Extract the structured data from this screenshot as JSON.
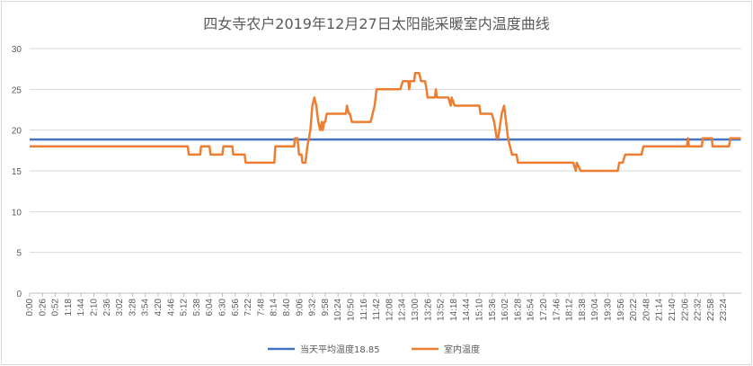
{
  "chart_data": {
    "type": "line",
    "title": "四女寺农户2019年12月27日太阳能采暖室内温度曲线",
    "ylim": [
      0,
      30
    ],
    "yticks": [
      "0",
      "5",
      "10",
      "15",
      "20",
      "25",
      "30"
    ],
    "xlabel": "",
    "ylabel": "",
    "grid": true,
    "legend_position": "bottom",
    "x_tick_labels": [
      "0:00",
      "0:26",
      "0:52",
      "1:18",
      "1:44",
      "2:10",
      "2:36",
      "3:02",
      "3:28",
      "3:54",
      "4:20",
      "4:46",
      "5:12",
      "5:38",
      "6:04",
      "6:30",
      "6:56",
      "7:22",
      "7:48",
      "8:14",
      "8:40",
      "9:06",
      "9:32",
      "9:58",
      "10:24",
      "10:50",
      "11:16",
      "11:42",
      "12:08",
      "12:34",
      "13:00",
      "13:26",
      "13:52",
      "14:18",
      "14:44",
      "15:10",
      "15:36",
      "16:02",
      "16:28",
      "16:54",
      "17:20",
      "17:46",
      "18:12",
      "18:38",
      "19:04",
      "19:30",
      "19:56",
      "20:22",
      "20:48",
      "21:14",
      "21:40",
      "22:06",
      "22:32",
      "22:58",
      "23:24"
    ],
    "series": [
      {
        "name": "当天平均温度18.85",
        "color": "#4472c4",
        "x": [
          "0:00",
          "23:59"
        ],
        "values": [
          18.85,
          18.85
        ]
      },
      {
        "name": "室内温度",
        "color": "#ed7d31",
        "x": [
          "0:00",
          "5:20",
          "5:22",
          "5:45",
          "5:47",
          "6:04",
          "6:06",
          "6:30",
          "6:32",
          "6:50",
          "6:52",
          "7:15",
          "7:17",
          "8:15",
          "8:17",
          "8:55",
          "8:57",
          "9:02",
          "9:05",
          "9:10",
          "9:12",
          "9:18",
          "9:22",
          "9:28",
          "9:32",
          "9:36",
          "9:40",
          "9:44",
          "9:48",
          "9:51",
          "9:53",
          "9:56",
          "9:58",
          "10:01",
          "10:03",
          "10:06",
          "10:10",
          "10:40",
          "10:42",
          "10:46",
          "10:48",
          "10:52",
          "11:30",
          "11:34",
          "11:38",
          "11:42",
          "11:44",
          "12:10",
          "12:30",
          "12:35",
          "12:46",
          "12:48",
          "12:50",
          "12:52",
          "12:58",
          "13:00",
          "13:08",
          "13:12",
          "13:20",
          "13:23",
          "13:25",
          "13:26",
          "13:30",
          "13:40",
          "13:42",
          "13:44",
          "13:55",
          "14:05",
          "14:07",
          "14:12",
          "14:14",
          "14:20",
          "14:23",
          "14:25",
          "15:10",
          "15:12",
          "15:35",
          "15:40",
          "15:45",
          "15:48",
          "15:55",
          "16:00",
          "16:04",
          "16:08",
          "16:12",
          "16:16",
          "16:20",
          "16:25",
          "16:28",
          "16:50",
          "16:53",
          "18:20",
          "18:25",
          "18:27",
          "18:35",
          "18:37",
          "18:40",
          "18:43",
          "19:50",
          "19:53",
          "20:00",
          "20:05",
          "20:38",
          "20:42",
          "22:10",
          "22:12",
          "22:14",
          "22:40",
          "22:42",
          "23:00",
          "23:02",
          "23:35",
          "23:38",
          "23:59"
        ],
        "values": [
          18,
          18,
          17,
          17,
          18,
          18,
          17,
          17,
          18,
          18,
          17,
          17,
          16,
          16,
          18,
          18,
          19,
          19,
          17,
          17,
          16,
          16,
          18,
          20,
          23,
          24,
          23,
          21,
          20,
          21,
          20,
          21,
          21,
          22,
          22,
          22,
          22,
          22,
          23,
          22,
          22,
          21,
          21,
          22,
          23,
          25,
          25,
          25,
          25,
          26,
          26,
          25,
          26,
          26,
          26,
          27,
          27,
          26,
          26,
          25,
          24,
          24,
          24,
          24,
          25,
          24,
          24,
          24,
          24,
          23,
          24,
          23,
          23,
          23,
          23,
          22,
          22,
          21,
          19,
          19,
          22,
          23,
          21,
          19,
          18,
          17,
          17,
          17,
          16,
          16,
          16,
          16,
          15,
          16,
          15,
          15,
          15,
          15,
          15,
          16,
          16,
          17,
          17,
          18,
          18,
          19,
          18,
          18,
          19,
          19,
          18,
          18,
          19,
          19
        ]
      }
    ]
  }
}
